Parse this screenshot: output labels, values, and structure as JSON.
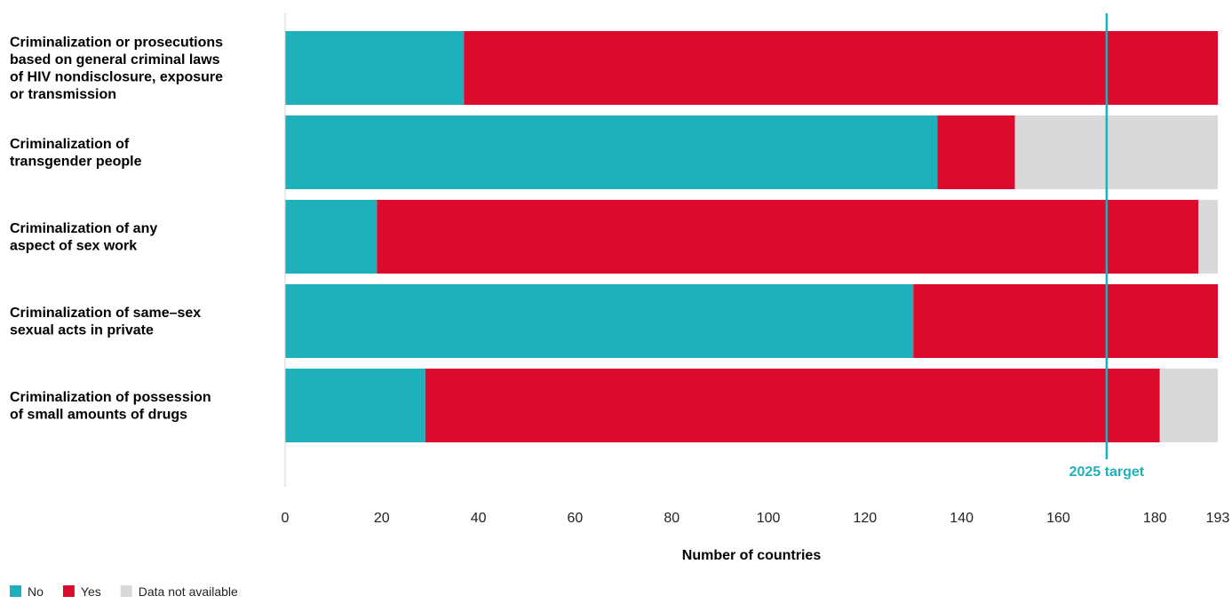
{
  "chart_data": {
    "type": "bar",
    "orientation": "horizontal",
    "stacked": true,
    "categories": [
      [
        "Criminalization or prosecutions",
        "based on general criminal laws",
        "of HIV nondisclosure, exposure",
        "or transmission"
      ],
      [
        "Criminalization of",
        "transgender people"
      ],
      [
        "Criminalization of any",
        "aspect of sex work"
      ],
      [
        "Criminalization of same–sex",
        "sexual acts in private"
      ],
      [
        "Criminalization of possession",
        "of small amounts of drugs"
      ]
    ],
    "series": [
      {
        "name": "No",
        "color": "#1fb1bb",
        "values": [
          37,
          135,
          19,
          130,
          29
        ]
      },
      {
        "name": "Yes",
        "color": "#dc0a2d",
        "values": [
          156,
          16,
          170,
          63,
          152
        ]
      },
      {
        "name": "Data not available",
        "color": "#d9d9d9",
        "values": [
          0,
          42,
          4,
          0,
          12
        ]
      }
    ],
    "xlabel": "Number of countries",
    "xlim": [
      0,
      193
    ],
    "xticks": [
      0,
      20,
      40,
      60,
      80,
      100,
      120,
      140,
      160,
      180,
      193
    ],
    "target": {
      "label": "2025 target",
      "value": 170,
      "color": "#1fb1bb"
    },
    "legend_position": "bottom-left",
    "grid": false
  }
}
